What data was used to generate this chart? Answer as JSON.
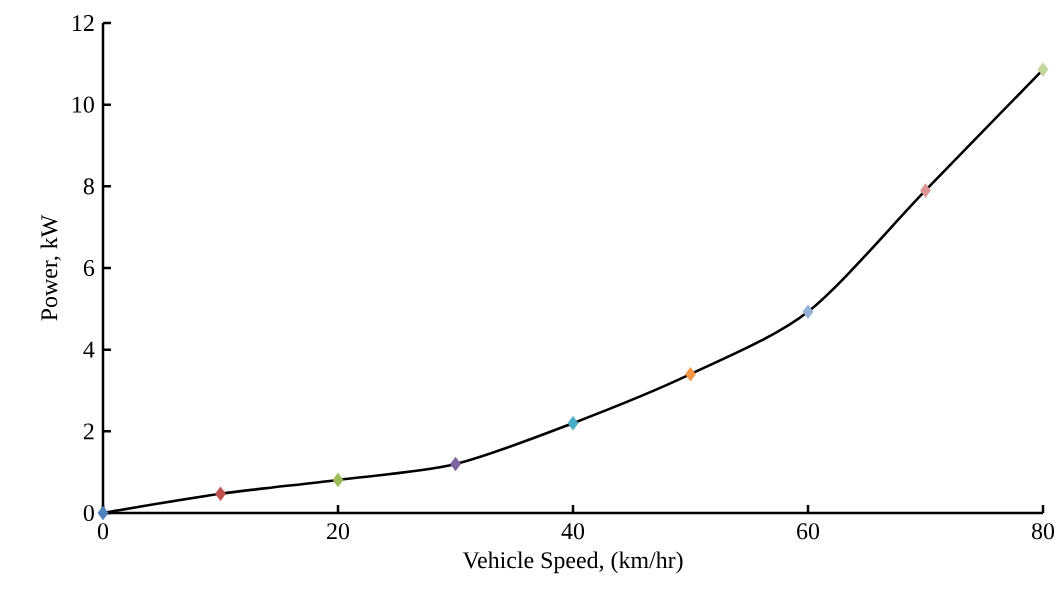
{
  "chart_data": {
    "type": "line",
    "xlabel": "Vehicle Speed,  (km/hr)",
    "ylabel": "Power, kW",
    "x": [
      0,
      10,
      20,
      30,
      40,
      50,
      60,
      70,
      80
    ],
    "series": [
      {
        "color": "#000000",
        "values": [
          0,
          0.47,
          0.81,
          1.2,
          2.2,
          3.4,
          4.93,
          7.9,
          10.86
        ],
        "colors": [
          "#4f81bd",
          "#c0504d",
          "#9bbb59",
          "#8064a2",
          "#4bacc6",
          "#f79646",
          "#95b3d7",
          "#d99694",
          "#c3d69b"
        ]
      }
    ],
    "xlim": [
      0,
      80
    ],
    "ylim": [
      0,
      12
    ],
    "xticks": [
      0,
      20,
      40,
      60,
      80
    ],
    "yticks": [
      0,
      2,
      4,
      6,
      8,
      10,
      12
    ],
    "marker": "diamond"
  }
}
